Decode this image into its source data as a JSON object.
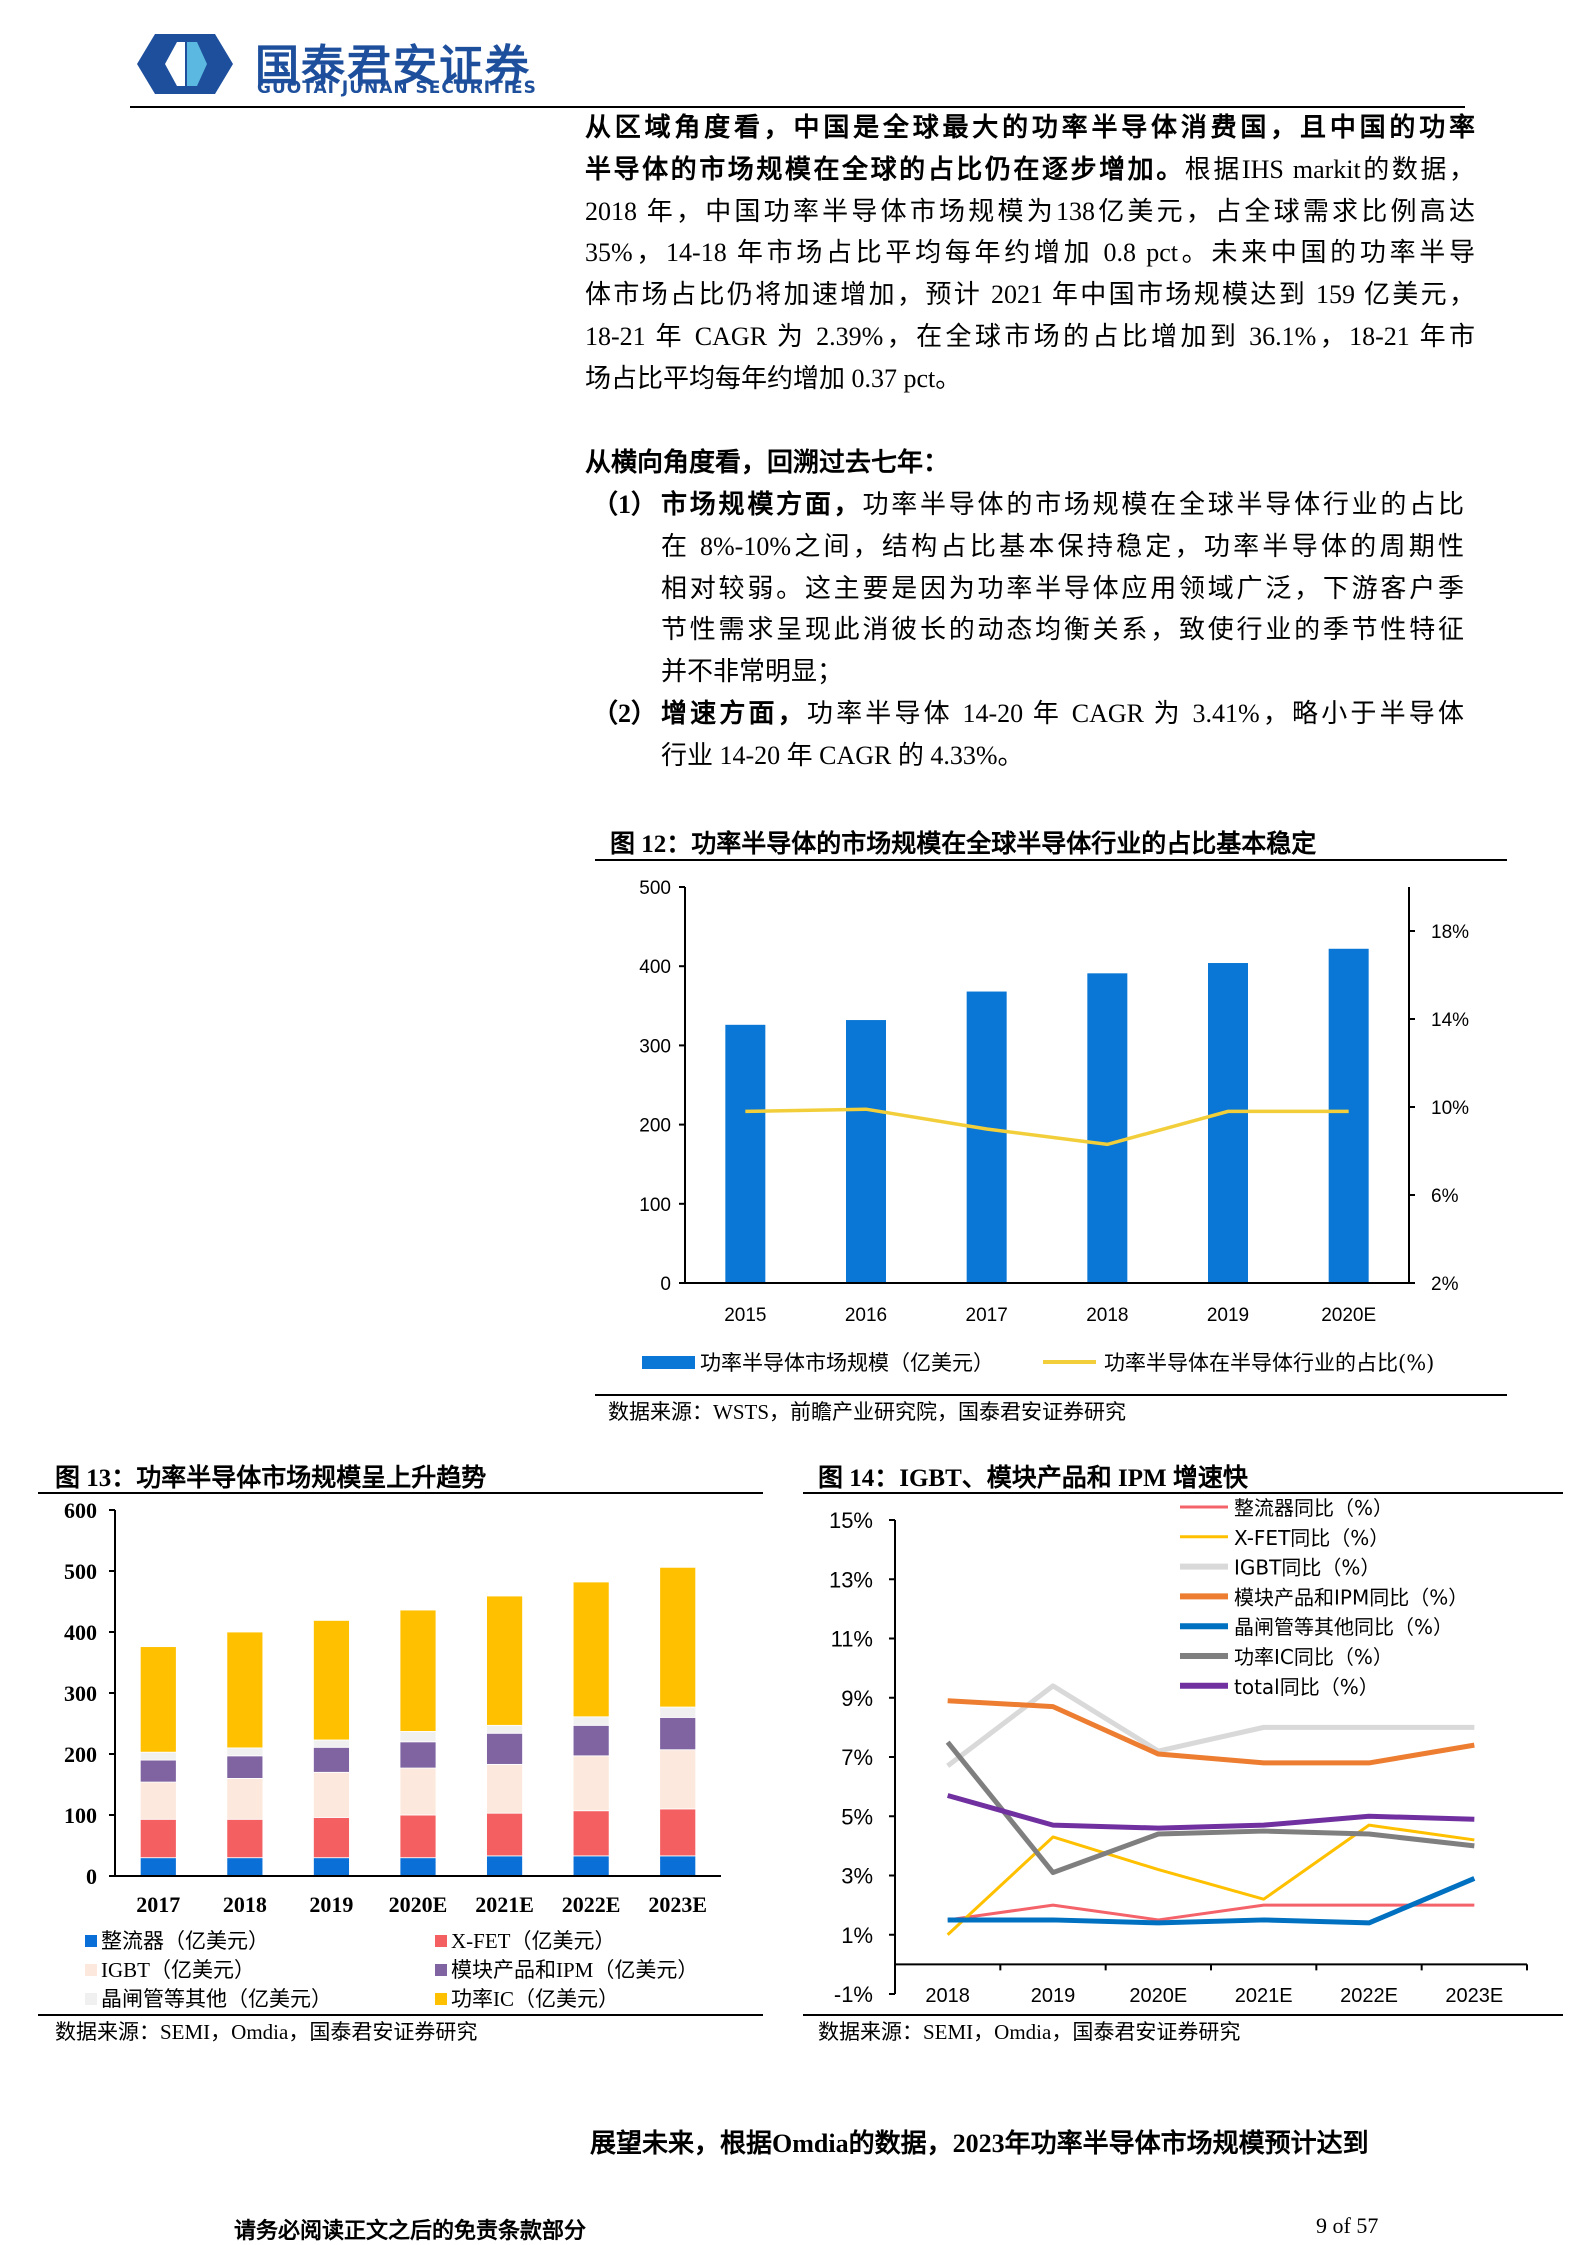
{
  "header": {
    "logo_cn": "国泰君安证券",
    "logo_en": "GUOTAI JUNAN SECURITIES",
    "brand_color": "#1d4f9c"
  },
  "para1": {
    "lines": [
      {
        "bold": "从区域角度看，中国是全球最大的功率半导体消费国，且中国的功率",
        "normal": ""
      },
      {
        "bold": "半导体的市场规模在全球的占比仍在逐步增加。",
        "normal": "根据IHS markit的数据，"
      },
      {
        "bold": "",
        "normal": "2018 年，中国功率半导体市场规模为138亿美元，占全球需求比例高达"
      },
      {
        "bold": "",
        "normal": "35%，14-18 年市场占比平均每年约增加 0.8 pct。未来中国的功率半导"
      },
      {
        "bold": "",
        "normal": "体市场占比仍将加速增加，预计 2021 年中国市场规模达到 159 亿美元，"
      },
      {
        "bold": "",
        "normal": "18-21 年 CAGR 为 2.39%，在全球市场的占比增加到 36.1%，18-21 年市"
      },
      {
        "bold": "",
        "normal": "场占比平均每年约增加 0.37 pct。"
      }
    ]
  },
  "para2": {
    "heading": "从横向角度看，回溯过去七年：",
    "items": [
      {
        "num": "（1）",
        "lines": [
          {
            "bold": "市场规模方面，",
            "normal": "功率半导体的市场规模在全球半导体行业的占比"
          },
          {
            "bold": "",
            "normal": "在  8%-10%之间，结构占比基本保持稳定，功率半导体的周期性"
          },
          {
            "bold": "",
            "normal": "相对较弱。这主要是因为功率半导体应用领域广泛，下游客户季"
          },
          {
            "bold": "",
            "normal": "节性需求呈现此消彼长的动态均衡关系，致使行业的季节性特征"
          },
          {
            "bold": "",
            "normal": "并不非常明显；"
          }
        ]
      },
      {
        "num": "（2）",
        "lines": [
          {
            "bold": "增速方面，",
            "normal": "功率半导体 14-20 年 CAGR 为 3.41%，略小于半导体"
          },
          {
            "bold": "",
            "normal": "行业 14-20 年 CAGR 的 4.33%。"
          }
        ]
      }
    ]
  },
  "fig12": {
    "title": "图 12：功率半导体的市场规模在全球半导体行业的占比基本稳定",
    "source": "数据来源：WSTS，前瞻产业研究院，国泰君安证券研究"
  },
  "fig13": {
    "title": "图 13：功率半导体市场规模呈上升趋势",
    "source": "数据来源：SEMI，Omdia，国泰君安证券研究"
  },
  "fig14": {
    "title": "图 14：IGBT、模块产品和 IPM 增速快",
    "source": "数据来源：SEMI，Omdia，国泰君安证券研究"
  },
  "chart_data": [
    {
      "type": "bar+line",
      "categories": [
        "2015",
        "2016",
        "2017",
        "2018",
        "2019",
        "2020E"
      ],
      "ylim": [
        0,
        500
      ],
      "yticks": [
        "0",
        "100",
        "200",
        "300",
        "400",
        "500"
      ],
      "y2lim": [
        2,
        20
      ],
      "y2ticks": [
        "2%",
        "6%",
        "10%",
        "14%",
        "18%"
      ],
      "grid": false,
      "legend": "bottom",
      "series": [
        {
          "name": "功率半导体市场规模（亿美元）",
          "kind": "bar",
          "axis": "left",
          "color": "#0a76d5",
          "values": [
            326,
            332,
            368,
            391,
            404,
            422
          ]
        },
        {
          "name": "功率半导体在半导体行业的占比(%)",
          "kind": "line",
          "axis": "right",
          "color": "#f2cf3a",
          "values": [
            9.8,
            9.9,
            9.0,
            8.3,
            9.8,
            9.8
          ]
        }
      ]
    },
    {
      "type": "stacked-bar",
      "categories": [
        "2017",
        "2018",
        "2019",
        "2020E",
        "2021E",
        "2022E",
        "2023E"
      ],
      "ylim": [
        0,
        600
      ],
      "yticks": [
        "0",
        "100",
        "200",
        "300",
        "400",
        "500",
        "600"
      ],
      "grid": false,
      "legend": "bottom",
      "series": [
        {
          "name": "整流器（亿美元）",
          "color": "#0a6fd6",
          "values": [
            30,
            30,
            30,
            30,
            33,
            33,
            33
          ]
        },
        {
          "name": "X-FET（亿美元）",
          "color": "#f45f61",
          "values": [
            63,
            63,
            66,
            70,
            70,
            74,
            77
          ]
        },
        {
          "name": "IGBT（亿美元）",
          "color": "#fce8dc",
          "values": [
            61,
            67,
            74,
            77,
            80,
            90,
            97
          ]
        },
        {
          "name": "模块产品和IPM（亿美元）",
          "color": "#8064a2",
          "values": [
            36,
            37,
            41,
            43,
            51,
            50,
            53
          ]
        },
        {
          "name": "晶闸管等其他（亿美元）",
          "color": "#f0f0f0",
          "values": [
            13,
            13,
            12,
            17,
            13,
            14,
            17
          ]
        },
        {
          "name": "功率IC（亿美元）",
          "color": "#ffc000",
          "values": [
            173,
            190,
            196,
            199,
            212,
            221,
            229
          ]
        }
      ]
    },
    {
      "type": "line",
      "categories": [
        "2018",
        "2019",
        "2020E",
        "2021E",
        "2022E",
        "2023E"
      ],
      "ylim": [
        -1,
        15
      ],
      "yticks": [
        "15%",
        "13%",
        "11%",
        "9%",
        "7%",
        "5%",
        "3%",
        "1%",
        "-1%"
      ],
      "grid": false,
      "legend": "top-right",
      "series": [
        {
          "name": "整流器同比（%）",
          "color": "#f4636a",
          "values": [
            1.5,
            2.0,
            1.5,
            2.0,
            2.0,
            2.0
          ]
        },
        {
          "name": "X-FET同比（%）",
          "color": "#ffc000",
          "values": [
            1.0,
            4.3,
            3.2,
            2.2,
            4.7,
            4.2
          ]
        },
        {
          "name": "IGBT同比（%）",
          "color": "#d9d9d9",
          "values": [
            6.7,
            9.4,
            7.2,
            8.0,
            8.0,
            8.0
          ]
        },
        {
          "name": "模块产品和IPM同比（%）",
          "color": "#ed7d31",
          "values": [
            8.9,
            8.7,
            7.1,
            6.8,
            6.8,
            7.4
          ]
        },
        {
          "name": "晶闸管等其他同比（%）",
          "color": "#0070c0",
          "values": [
            1.5,
            1.5,
            1.4,
            1.5,
            1.4,
            2.9
          ]
        },
        {
          "name": "功率IC同比（%）",
          "color": "#7f7f7f",
          "values": [
            7.5,
            3.1,
            4.4,
            4.5,
            4.4,
            4.0
          ]
        },
        {
          "name": "total同比（%）",
          "color": "#7030a0",
          "values": [
            5.7,
            4.7,
            4.6,
            4.7,
            5.0,
            4.9
          ]
        }
      ]
    }
  ],
  "closing": "展望未来，根据Omdia的数据，2023年功率半导体市场规模预计达到",
  "footer": {
    "disclaimer": "请务必阅读正文之后的免责条款部分",
    "page": "9 of 57"
  }
}
